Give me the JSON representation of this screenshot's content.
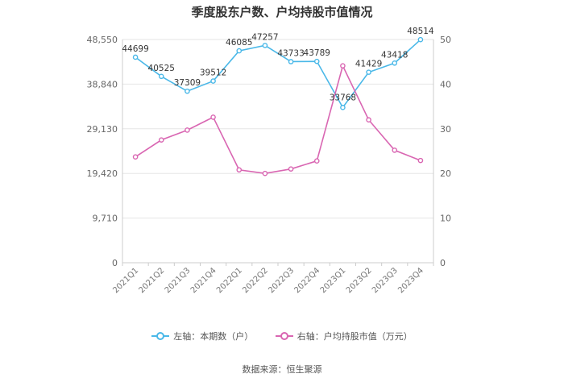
{
  "chart_data": {
    "type": "line",
    "title": "季度股东户数、户均持股市值情况",
    "categories": [
      "2021Q1",
      "2021Q2",
      "2021Q3",
      "2021Q4",
      "2022Q1",
      "2022Q2",
      "2022Q3",
      "2022Q4",
      "2023Q1",
      "2023Q2",
      "2023Q3",
      "2023Q4"
    ],
    "left_axis": {
      "ticks": [
        "0",
        "9,710",
        "19,420",
        "29,130",
        "38,840",
        "48,550"
      ],
      "ylim": [
        0,
        48550
      ]
    },
    "right_axis": {
      "ticks": [
        "0",
        "10",
        "20",
        "30",
        "40",
        "50"
      ],
      "ylim": [
        0,
        50
      ]
    },
    "series": [
      {
        "name": "左轴：本期数（户）",
        "axis": "left",
        "color": "#4ab8e8",
        "values": [
          44699,
          40525,
          37309,
          39512,
          46085,
          47257,
          43733,
          43789,
          33768,
          41429,
          43418,
          48514
        ],
        "labels": [
          "44699",
          "40525",
          "37309",
          "39512",
          "46085",
          "47257",
          "43733",
          "43789",
          "33768",
          "41429",
          "43418",
          "48514"
        ]
      },
      {
        "name": "右轴：户均持股市值（万元）",
        "axis": "right",
        "color": "#d966b2",
        "values": [
          23.7,
          27.5,
          29.7,
          32.6,
          20.8,
          20.0,
          21.0,
          22.8,
          44.1,
          32.0,
          25.2,
          22.9
        ]
      }
    ],
    "grid": true,
    "legend": "bottom"
  },
  "source": "数据来源：恒生聚源"
}
